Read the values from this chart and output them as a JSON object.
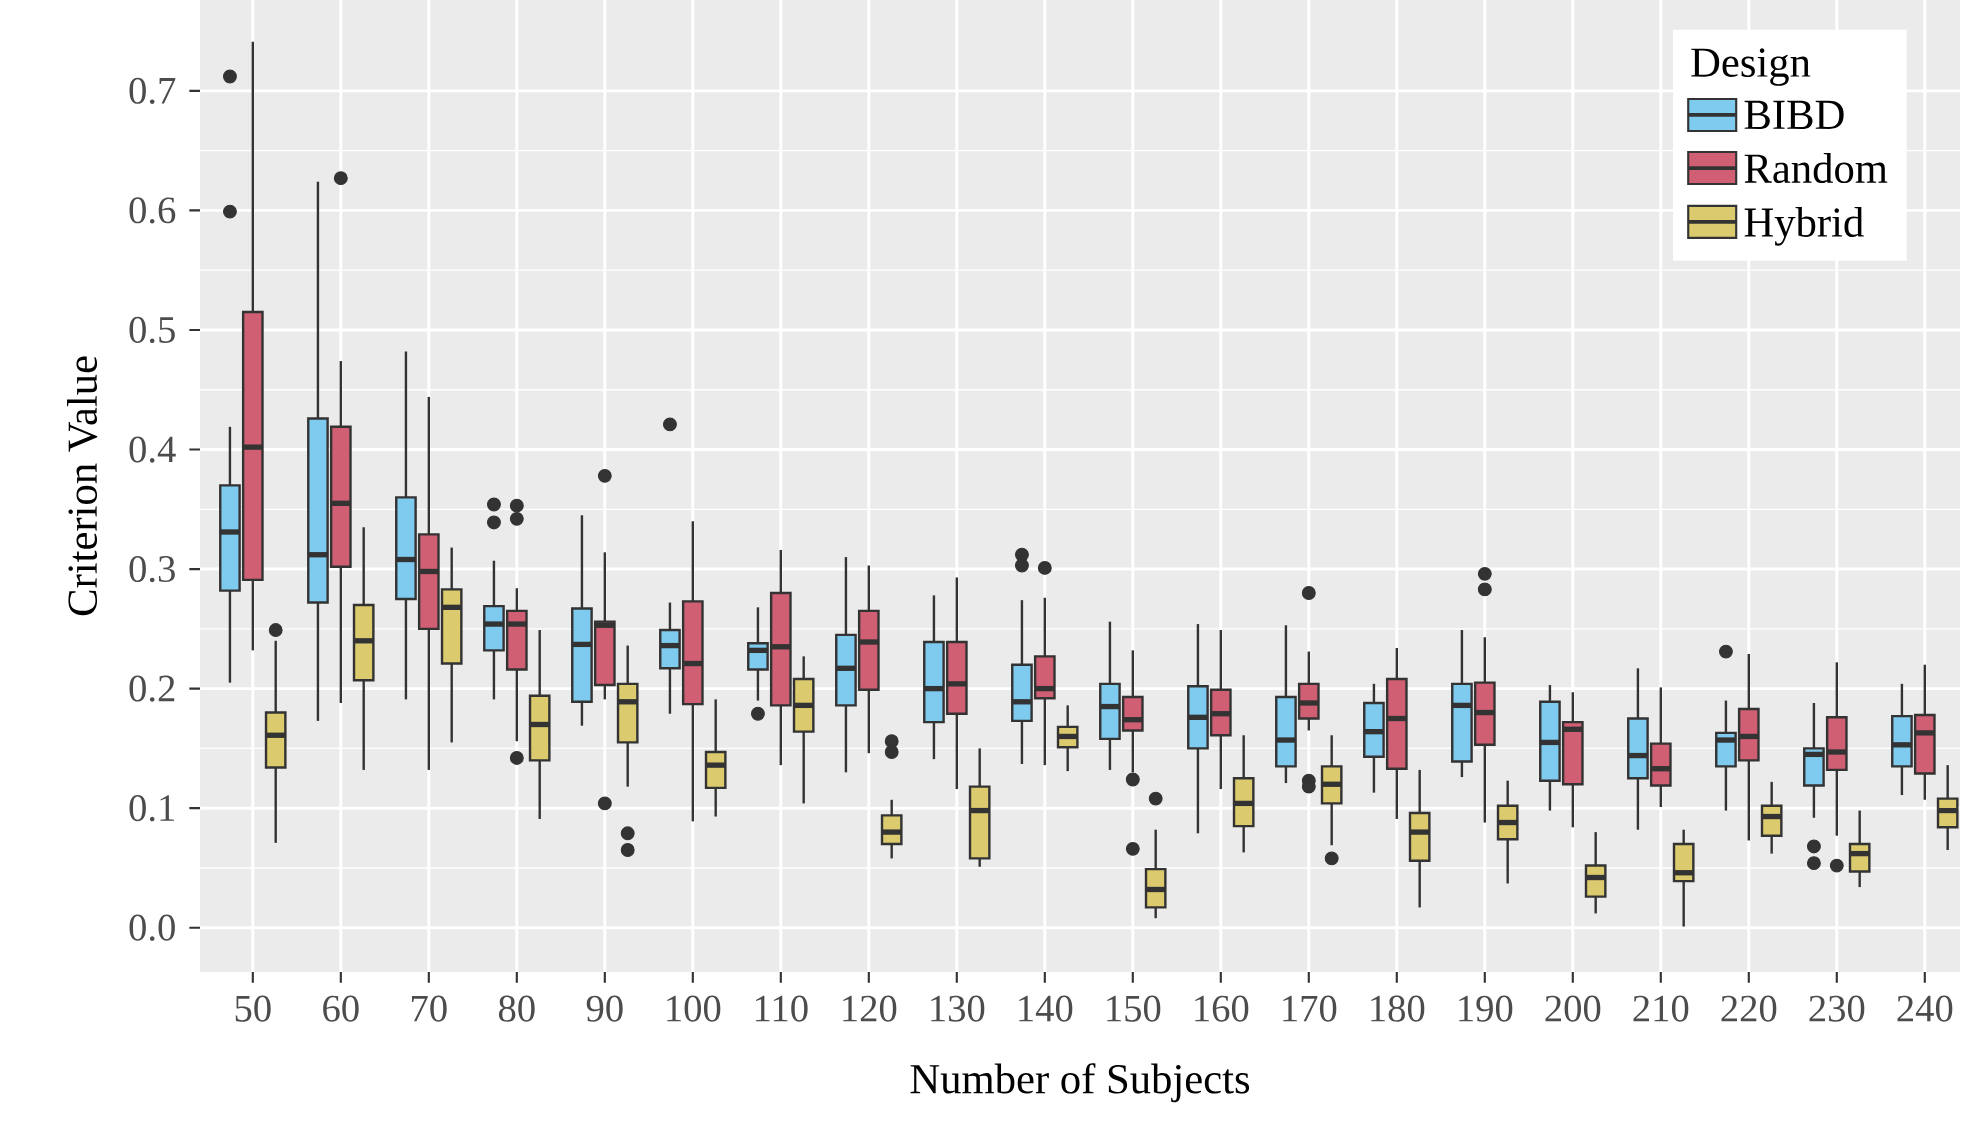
{
  "chart_data": {
    "type": "box",
    "xlabel": "Number of Subjects",
    "ylabel": "Criterion Value",
    "legend_title": "Design",
    "legend": "top right",
    "grid": true,
    "categories": [
      "50",
      "60",
      "70",
      "80",
      "90",
      "100",
      "110",
      "120",
      "130",
      "140",
      "150",
      "160",
      "170",
      "180",
      "190",
      "200",
      "210",
      "220",
      "230",
      "240"
    ],
    "ylim": [
      -0.037,
      0.776
    ],
    "yticks": [
      {
        "value": 0,
        "label": "0.0"
      },
      0.1,
      0.2,
      0.3,
      0.4,
      0.5,
      0.6,
      0.7
    ],
    "series": [
      {
        "name": "BIBD",
        "color": "#7ecbef",
        "boxes": [
          {
            "low": 0.205,
            "q1": 0.282,
            "median": 0.331,
            "q3": 0.37,
            "high": 0.419,
            "outliers": [
              0.712,
              0.599
            ]
          },
          {
            "low": 0.173,
            "q1": 0.272,
            "median": 0.312,
            "q3": 0.426,
            "high": 0.624
          },
          {
            "low": 0.191,
            "q1": 0.275,
            "median": 0.308,
            "q3": 0.36,
            "high": 0.482
          },
          {
            "low": 0.191,
            "q1": 0.232,
            "median": 0.254,
            "q3": 0.269,
            "high": 0.307,
            "outliers": [
              0.354,
              0.339
            ]
          },
          {
            "low": 0.169,
            "q1": 0.189,
            "median": 0.237,
            "q3": 0.267,
            "high": 0.345
          },
          {
            "low": 0.179,
            "q1": 0.217,
            "median": 0.236,
            "q3": 0.249,
            "high": 0.272,
            "outliers": [
              0.421
            ]
          },
          {
            "low": 0.19,
            "q1": 0.216,
            "median": 0.232,
            "q3": 0.238,
            "high": 0.268,
            "outliers": [
              0.179
            ]
          },
          {
            "low": 0.13,
            "q1": 0.186,
            "median": 0.217,
            "q3": 0.245,
            "high": 0.31
          },
          {
            "low": 0.141,
            "q1": 0.172,
            "median": 0.2,
            "q3": 0.239,
            "high": 0.278
          },
          {
            "low": 0.137,
            "q1": 0.173,
            "median": 0.189,
            "q3": 0.22,
            "high": 0.274,
            "outliers": [
              0.312,
              0.303
            ]
          },
          {
            "low": 0.132,
            "q1": 0.158,
            "median": 0.185,
            "q3": 0.204,
            "high": 0.256
          },
          {
            "low": 0.079,
            "q1": 0.15,
            "median": 0.176,
            "q3": 0.202,
            "high": 0.254
          },
          {
            "low": 0.121,
            "q1": 0.135,
            "median": 0.157,
            "q3": 0.193,
            "high": 0.253
          },
          {
            "low": 0.113,
            "q1": 0.143,
            "median": 0.164,
            "q3": 0.188,
            "high": 0.204
          },
          {
            "low": 0.126,
            "q1": 0.139,
            "median": 0.186,
            "q3": 0.204,
            "high": 0.249
          },
          {
            "low": 0.098,
            "q1": 0.123,
            "median": 0.155,
            "q3": 0.189,
            "high": 0.203
          },
          {
            "low": 0.082,
            "q1": 0.125,
            "median": 0.144,
            "q3": 0.175,
            "high": 0.217
          },
          {
            "low": 0.098,
            "q1": 0.135,
            "median": 0.157,
            "q3": 0.163,
            "high": 0.19,
            "outliers": [
              0.231
            ]
          },
          {
            "low": 0.092,
            "q1": 0.119,
            "median": 0.145,
            "q3": 0.15,
            "high": 0.188,
            "outliers": [
              0.068,
              0.054
            ]
          },
          {
            "low": 0.111,
            "q1": 0.135,
            "median": 0.153,
            "q3": 0.177,
            "high": 0.204
          }
        ]
      },
      {
        "name": "Random",
        "color": "#d05f73",
        "boxes": [
          {
            "low": 0.232,
            "q1": 0.291,
            "median": 0.402,
            "q3": 0.515,
            "high": 0.741
          },
          {
            "low": 0.188,
            "q1": 0.302,
            "median": 0.355,
            "q3": 0.419,
            "high": 0.474,
            "outliers": [
              0.627
            ]
          },
          {
            "low": 0.132,
            "q1": 0.25,
            "median": 0.298,
            "q3": 0.329,
            "high": 0.444
          },
          {
            "low": 0.156,
            "q1": 0.216,
            "median": 0.254,
            "q3": 0.265,
            "high": 0.284,
            "outliers": [
              0.353,
              0.342,
              0.142
            ]
          },
          {
            "low": 0.191,
            "q1": 0.203,
            "median": 0.253,
            "q3": 0.256,
            "high": 0.314,
            "outliers": [
              0.378,
              0.104
            ]
          },
          {
            "low": 0.089,
            "q1": 0.187,
            "median": 0.221,
            "q3": 0.273,
            "high": 0.34
          },
          {
            "low": 0.136,
            "q1": 0.186,
            "median": 0.235,
            "q3": 0.28,
            "high": 0.316
          },
          {
            "low": 0.146,
            "q1": 0.199,
            "median": 0.239,
            "q3": 0.265,
            "high": 0.303
          },
          {
            "low": 0.116,
            "q1": 0.179,
            "median": 0.204,
            "q3": 0.239,
            "high": 0.293
          },
          {
            "low": 0.136,
            "q1": 0.192,
            "median": 0.2,
            "q3": 0.227,
            "high": 0.276,
            "outliers": [
              0.301
            ]
          },
          {
            "low": 0.13,
            "q1": 0.165,
            "median": 0.174,
            "q3": 0.193,
            "high": 0.232,
            "outliers": [
              0.124,
              0.066
            ]
          },
          {
            "low": 0.116,
            "q1": 0.161,
            "median": 0.179,
            "q3": 0.199,
            "high": 0.249
          },
          {
            "low": 0.165,
            "q1": 0.175,
            "median": 0.188,
            "q3": 0.204,
            "high": 0.231,
            "outliers": [
              0.28,
              0.123,
              0.118
            ]
          },
          {
            "low": 0.091,
            "q1": 0.133,
            "median": 0.175,
            "q3": 0.208,
            "high": 0.234
          },
          {
            "low": 0.088,
            "q1": 0.153,
            "median": 0.18,
            "q3": 0.205,
            "high": 0.243,
            "outliers": [
              0.296,
              0.283
            ]
          },
          {
            "low": 0.084,
            "q1": 0.12,
            "median": 0.166,
            "q3": 0.172,
            "high": 0.197
          },
          {
            "low": 0.101,
            "q1": 0.119,
            "median": 0.133,
            "q3": 0.154,
            "high": 0.201
          },
          {
            "low": 0.073,
            "q1": 0.14,
            "median": 0.16,
            "q3": 0.183,
            "high": 0.229
          },
          {
            "low": 0.077,
            "q1": 0.132,
            "median": 0.147,
            "q3": 0.176,
            "high": 0.222,
            "outliers": [
              0.052
            ]
          },
          {
            "low": 0.107,
            "q1": 0.129,
            "median": 0.163,
            "q3": 0.178,
            "high": 0.22
          }
        ]
      },
      {
        "name": "Hybrid",
        "color": "#dccb6e",
        "boxes": [
          {
            "low": 0.071,
            "q1": 0.134,
            "median": 0.161,
            "q3": 0.18,
            "high": 0.24,
            "outliers": [
              0.249
            ]
          },
          {
            "low": 0.132,
            "q1": 0.207,
            "median": 0.24,
            "q3": 0.27,
            "high": 0.335
          },
          {
            "low": 0.155,
            "q1": 0.221,
            "median": 0.268,
            "q3": 0.283,
            "high": 0.318
          },
          {
            "low": 0.091,
            "q1": 0.14,
            "median": 0.17,
            "q3": 0.194,
            "high": 0.249
          },
          {
            "low": 0.118,
            "q1": 0.155,
            "median": 0.189,
            "q3": 0.204,
            "high": 0.236,
            "outliers": [
              0.079,
              0.065
            ]
          },
          {
            "low": 0.093,
            "q1": 0.117,
            "median": 0.136,
            "q3": 0.147,
            "high": 0.191
          },
          {
            "low": 0.104,
            "q1": 0.164,
            "median": 0.186,
            "q3": 0.208,
            "high": 0.227
          },
          {
            "low": 0.058,
            "q1": 0.07,
            "median": 0.08,
            "q3": 0.094,
            "high": 0.107,
            "outliers": [
              0.156,
              0.147
            ]
          },
          {
            "low": 0.051,
            "q1": 0.058,
            "median": 0.098,
            "q3": 0.118,
            "high": 0.15
          },
          {
            "low": 0.131,
            "q1": 0.151,
            "median": 0.16,
            "q3": 0.168,
            "high": 0.186
          },
          {
            "low": 0.008,
            "q1": 0.017,
            "median": 0.032,
            "q3": 0.049,
            "high": 0.082,
            "outliers": [
              0.108
            ]
          },
          {
            "low": 0.063,
            "q1": 0.085,
            "median": 0.104,
            "q3": 0.125,
            "high": 0.161
          },
          {
            "low": 0.069,
            "q1": 0.104,
            "median": 0.12,
            "q3": 0.135,
            "high": 0.161,
            "outliers": [
              0.058
            ]
          },
          {
            "low": 0.017,
            "q1": 0.056,
            "median": 0.08,
            "q3": 0.096,
            "high": 0.132
          },
          {
            "low": 0.037,
            "q1": 0.074,
            "median": 0.088,
            "q3": 0.102,
            "high": 0.123
          },
          {
            "low": 0.012,
            "q1": 0.026,
            "median": 0.042,
            "q3": 0.052,
            "high": 0.08
          },
          {
            "low": 0.001,
            "q1": 0.039,
            "median": 0.046,
            "q3": 0.07,
            "high": 0.082
          },
          {
            "low": 0.062,
            "q1": 0.077,
            "median": 0.093,
            "q3": 0.102,
            "high": 0.122
          },
          {
            "low": 0.034,
            "q1": 0.047,
            "median": 0.062,
            "q3": 0.07,
            "high": 0.098
          },
          {
            "low": 0.065,
            "q1": 0.084,
            "median": 0.098,
            "q3": 0.108,
            "high": 0.136
          }
        ]
      }
    ]
  }
}
